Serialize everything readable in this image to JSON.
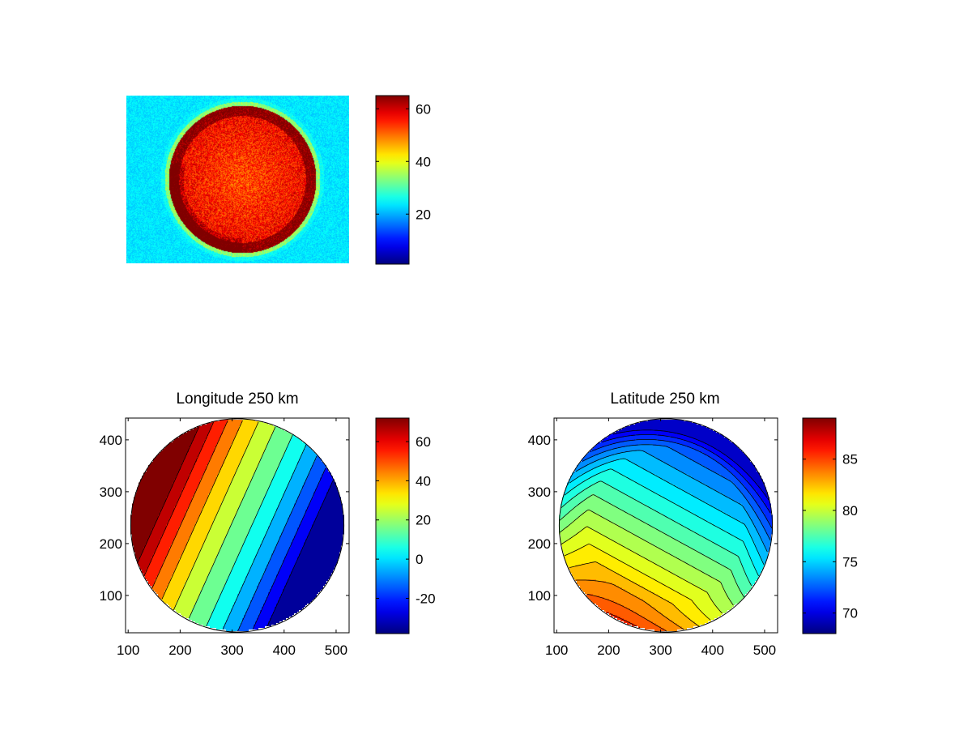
{
  "chart_data": [
    {
      "type": "heatmap",
      "title": "",
      "xlabel": "",
      "ylabel": "",
      "axes_visible": false,
      "colormap": "jet",
      "description_of_values": "detector image: bright disk (about 50-60) on background (about 20-25)",
      "colorbar": {
        "clim": [
          1,
          65
        ],
        "ticks": [
          20,
          40,
          60
        ]
      }
    },
    {
      "type": "heatmap",
      "title": "Longitude 250 km",
      "xlabel": "",
      "ylabel": "",
      "colormap": "jet",
      "contour_lines": true,
      "xlim": [
        95,
        525
      ],
      "ylim": [
        28,
        442
      ],
      "xticks": [
        100,
        200,
        300,
        400,
        500
      ],
      "yticks": [
        100,
        200,
        300,
        400
      ],
      "disk": {
        "center": [
          310,
          235
        ],
        "radius": 205
      },
      "colorbar": {
        "clim": [
          -38,
          72
        ],
        "ticks": [
          -20,
          0,
          20,
          40,
          60
        ]
      },
      "contour_levels": [
        -30,
        -20,
        -10,
        0,
        10,
        20,
        30,
        40,
        50,
        60,
        70
      ]
    },
    {
      "type": "heatmap",
      "title": "Latitude 250 km",
      "xlabel": "",
      "ylabel": "",
      "colormap": "jet",
      "contour_lines": true,
      "xlim": [
        95,
        525
      ],
      "ylim": [
        28,
        442
      ],
      "xticks": [
        100,
        200,
        300,
        400,
        500
      ],
      "yticks": [
        100,
        200,
        300,
        400
      ],
      "disk": {
        "center": [
          310,
          235
        ],
        "radius": 205
      },
      "colorbar": {
        "clim": [
          68,
          89
        ],
        "ticks": [
          70,
          75,
          80,
          85
        ]
      },
      "contour_levels": [
        70,
        71,
        72,
        73,
        74,
        75,
        76,
        77,
        78,
        79,
        80,
        81,
        82,
        83,
        84,
        85,
        86,
        87,
        88
      ]
    }
  ]
}
